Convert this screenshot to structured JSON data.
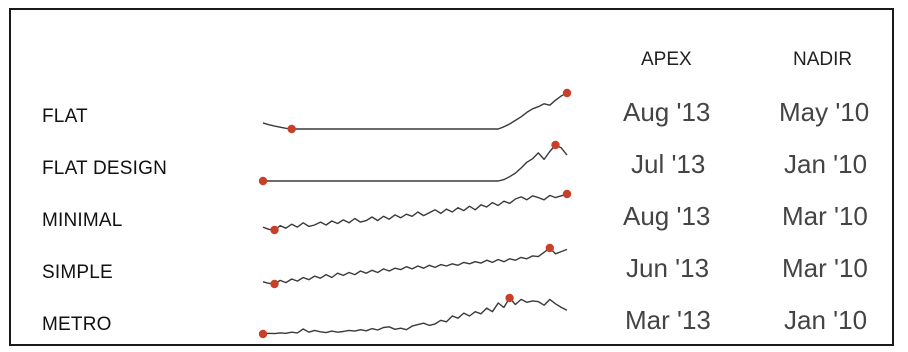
{
  "chart_data": {
    "type": "line",
    "columns": {
      "apex": "APEX",
      "nadir": "NADIR"
    },
    "series": [
      {
        "name": "FLAT",
        "apex": "Aug '13",
        "nadir": "May '10",
        "values": [
          0.17,
          0.12,
          0.08,
          0.05,
          0.02,
          0,
          0,
          0,
          0,
          0,
          0,
          0,
          0,
          0,
          0,
          0,
          0,
          0,
          0,
          0,
          0,
          0,
          0,
          0,
          0,
          0,
          0,
          0,
          0,
          0,
          0,
          0,
          0,
          0,
          0,
          0,
          0,
          0,
          0,
          0,
          0,
          0,
          0.06,
          0.14,
          0.24,
          0.34,
          0.46,
          0.56,
          0.62,
          0.7,
          0.66,
          0.8,
          0.92,
          1.0
        ]
      },
      {
        "name": "FLAT DESIGN",
        "apex": "Jul '13",
        "nadir": "Jan '10",
        "values": [
          0,
          0,
          0,
          0,
          0,
          0,
          0,
          0,
          0,
          0,
          0,
          0,
          0,
          0,
          0,
          0,
          0,
          0,
          0,
          0,
          0,
          0,
          0,
          0,
          0,
          0,
          0,
          0,
          0,
          0,
          0,
          0,
          0,
          0,
          0,
          0,
          0,
          0,
          0,
          0,
          0,
          0,
          0.04,
          0.12,
          0.22,
          0.36,
          0.52,
          0.62,
          0.78,
          0.6,
          0.82,
          1.0,
          0.92,
          0.72
        ]
      },
      {
        "name": "MINIMAL",
        "apex": "Aug '13",
        "nadir": "Mar '10",
        "values": [
          0.08,
          0.02,
          0,
          0.12,
          0.05,
          0.16,
          0.08,
          0.2,
          0.1,
          0.14,
          0.22,
          0.14,
          0.25,
          0.18,
          0.28,
          0.2,
          0.32,
          0.22,
          0.26,
          0.36,
          0.26,
          0.38,
          0.3,
          0.42,
          0.34,
          0.44,
          0.38,
          0.5,
          0.4,
          0.48,
          0.56,
          0.46,
          0.58,
          0.5,
          0.62,
          0.54,
          0.66,
          0.56,
          0.7,
          0.64,
          0.76,
          0.68,
          0.8,
          0.74,
          0.86,
          0.92,
          0.84,
          0.95,
          0.9,
          0.84,
          0.96,
          0.9,
          0.95,
          1.0
        ]
      },
      {
        "name": "SIMPLE",
        "apex": "Jun '13",
        "nadir": "Mar '10",
        "values": [
          0.06,
          0.02,
          0,
          0.1,
          0.04,
          0.14,
          0.08,
          0.18,
          0.12,
          0.22,
          0.16,
          0.26,
          0.18,
          0.3,
          0.24,
          0.32,
          0.26,
          0.36,
          0.3,
          0.38,
          0.32,
          0.42,
          0.36,
          0.44,
          0.4,
          0.48,
          0.42,
          0.5,
          0.44,
          0.52,
          0.46,
          0.54,
          0.5,
          0.56,
          0.52,
          0.6,
          0.56,
          0.62,
          0.58,
          0.66,
          0.6,
          0.68,
          0.62,
          0.7,
          0.66,
          0.74,
          0.7,
          0.78,
          0.76,
          0.88,
          1.0,
          0.84,
          0.9,
          0.96
        ]
      },
      {
        "name": "METRO",
        "apex": "Mar '13",
        "nadir": "Jan '10",
        "values": [
          0,
          0.02,
          0.01,
          0.03,
          0.02,
          0.05,
          0.03,
          0.14,
          0.05,
          0.1,
          0.06,
          0.04,
          0.08,
          0.05,
          0.07,
          0.1,
          0.08,
          0.12,
          0.09,
          0.15,
          0.11,
          0.18,
          0.2,
          0.13,
          0.16,
          0.12,
          0.22,
          0.26,
          0.3,
          0.24,
          0.28,
          0.38,
          0.34,
          0.5,
          0.44,
          0.58,
          0.5,
          0.62,
          0.56,
          0.72,
          0.62,
          0.86,
          0.74,
          1.0,
          0.82,
          0.96,
          0.88,
          0.92,
          0.9,
          0.8,
          0.96,
          0.84,
          0.74,
          0.66
        ]
      }
    ]
  }
}
